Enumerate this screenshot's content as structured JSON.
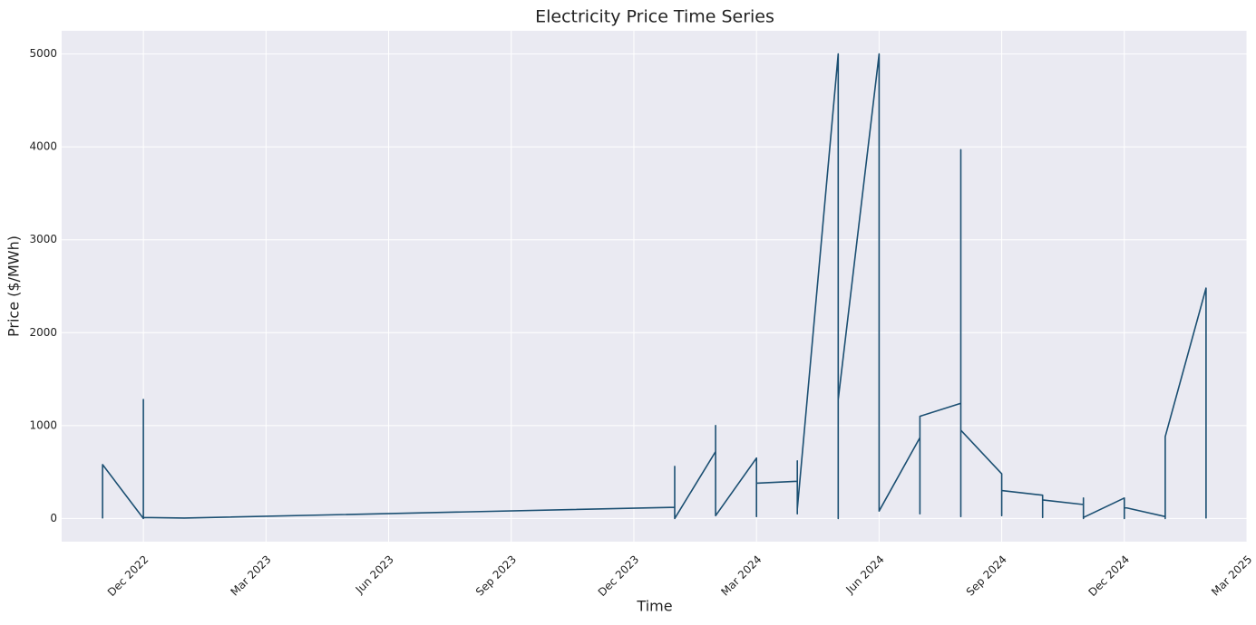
{
  "chart_data": {
    "type": "line",
    "title": "Electricity Price Time Series",
    "x_label": "Time",
    "y_label": "Price ($/MWh)",
    "x": [
      "2022-11",
      "2022-11",
      "2022-11",
      "2022-11",
      "2022-11",
      "2022-11",
      "2022-11",
      "2022-11",
      "2022-12",
      "2022-12",
      "2022-12",
      "2022-12",
      "2022-12",
      "2023-01",
      "2024-01",
      "2024-01",
      "2024-01",
      "2024-01",
      "2024-01",
      "2024-01",
      "2024-01",
      "2024-02",
      "2024-02",
      "2024-02",
      "2024-02",
      "2024-03",
      "2024-03",
      "2024-03",
      "2024-03",
      "2024-03",
      "2024-04",
      "2024-04",
      "2024-04",
      "2024-04",
      "2024-05",
      "2024-05",
      "2024-05",
      "2024-05",
      "2024-05",
      "2024-05",
      "2024-05",
      "2024-05",
      "2024-05",
      "2024-06",
      "2024-06",
      "2024-06",
      "2024-06",
      "2024-06",
      "2024-07",
      "2024-07",
      "2024-07",
      "2024-07",
      "2024-07",
      "2024-08",
      "2024-08",
      "2024-08",
      "2024-08",
      "2024-08",
      "2024-08",
      "2024-08",
      "2024-09",
      "2024-09",
      "2024-09",
      "2024-10",
      "2024-10",
      "2024-10",
      "2024-11",
      "2024-11",
      "2024-11",
      "2024-11",
      "2024-12",
      "2024-12",
      "2024-12",
      "2025-01",
      "2025-01",
      "2025-01",
      "2025-01",
      "2025-02",
      "2025-02",
      "2025-02",
      "2025-02"
    ],
    "series": [
      {
        "name": "Price",
        "color": "#1b4f72",
        "values": [
          0,
          70,
          10,
          220,
          30,
          300,
          20,
          580,
          0,
          1280,
          20,
          280,
          10,
          5,
          120,
          300,
          0,
          250,
          20,
          560,
          0,
          720,
          50,
          1000,
          30,
          650,
          20,
          520,
          100,
          380,
          400,
          50,
          620,
          100,
          5000,
          0,
          5000,
          100,
          5000,
          50,
          600,
          20,
          1280,
          5000,
          100,
          300,
          5000,
          80,
          870,
          100,
          1050,
          50,
          1100,
          1240,
          50,
          3970,
          80,
          1080,
          20,
          950,
          480,
          30,
          300,
          250,
          10,
          200,
          150,
          0,
          220,
          10,
          220,
          0,
          120,
          20,
          400,
          0,
          880,
          2480,
          10,
          350,
          0
        ]
      }
    ],
    "xlim": [
      "2022-10",
      "2025-03"
    ],
    "xticks": [
      {
        "value": "2022-12",
        "label": "Dec 2022"
      },
      {
        "value": "2023-03",
        "label": "Mar 2023"
      },
      {
        "value": "2023-06",
        "label": "Jun 2023"
      },
      {
        "value": "2023-09",
        "label": "Sep 2023"
      },
      {
        "value": "2023-12",
        "label": "Dec 2023"
      },
      {
        "value": "2024-03",
        "label": "Mar 2024"
      },
      {
        "value": "2024-06",
        "label": "Jun 2024"
      },
      {
        "value": "2024-09",
        "label": "Sep 2024"
      },
      {
        "value": "2024-12",
        "label": "Dec 2024"
      },
      {
        "value": "2025-03",
        "label": "Mar 2025"
      }
    ],
    "ylim": [
      -250,
      5250
    ],
    "yticks": [
      0,
      1000,
      2000,
      3000,
      4000,
      5000
    ],
    "grid": true
  }
}
